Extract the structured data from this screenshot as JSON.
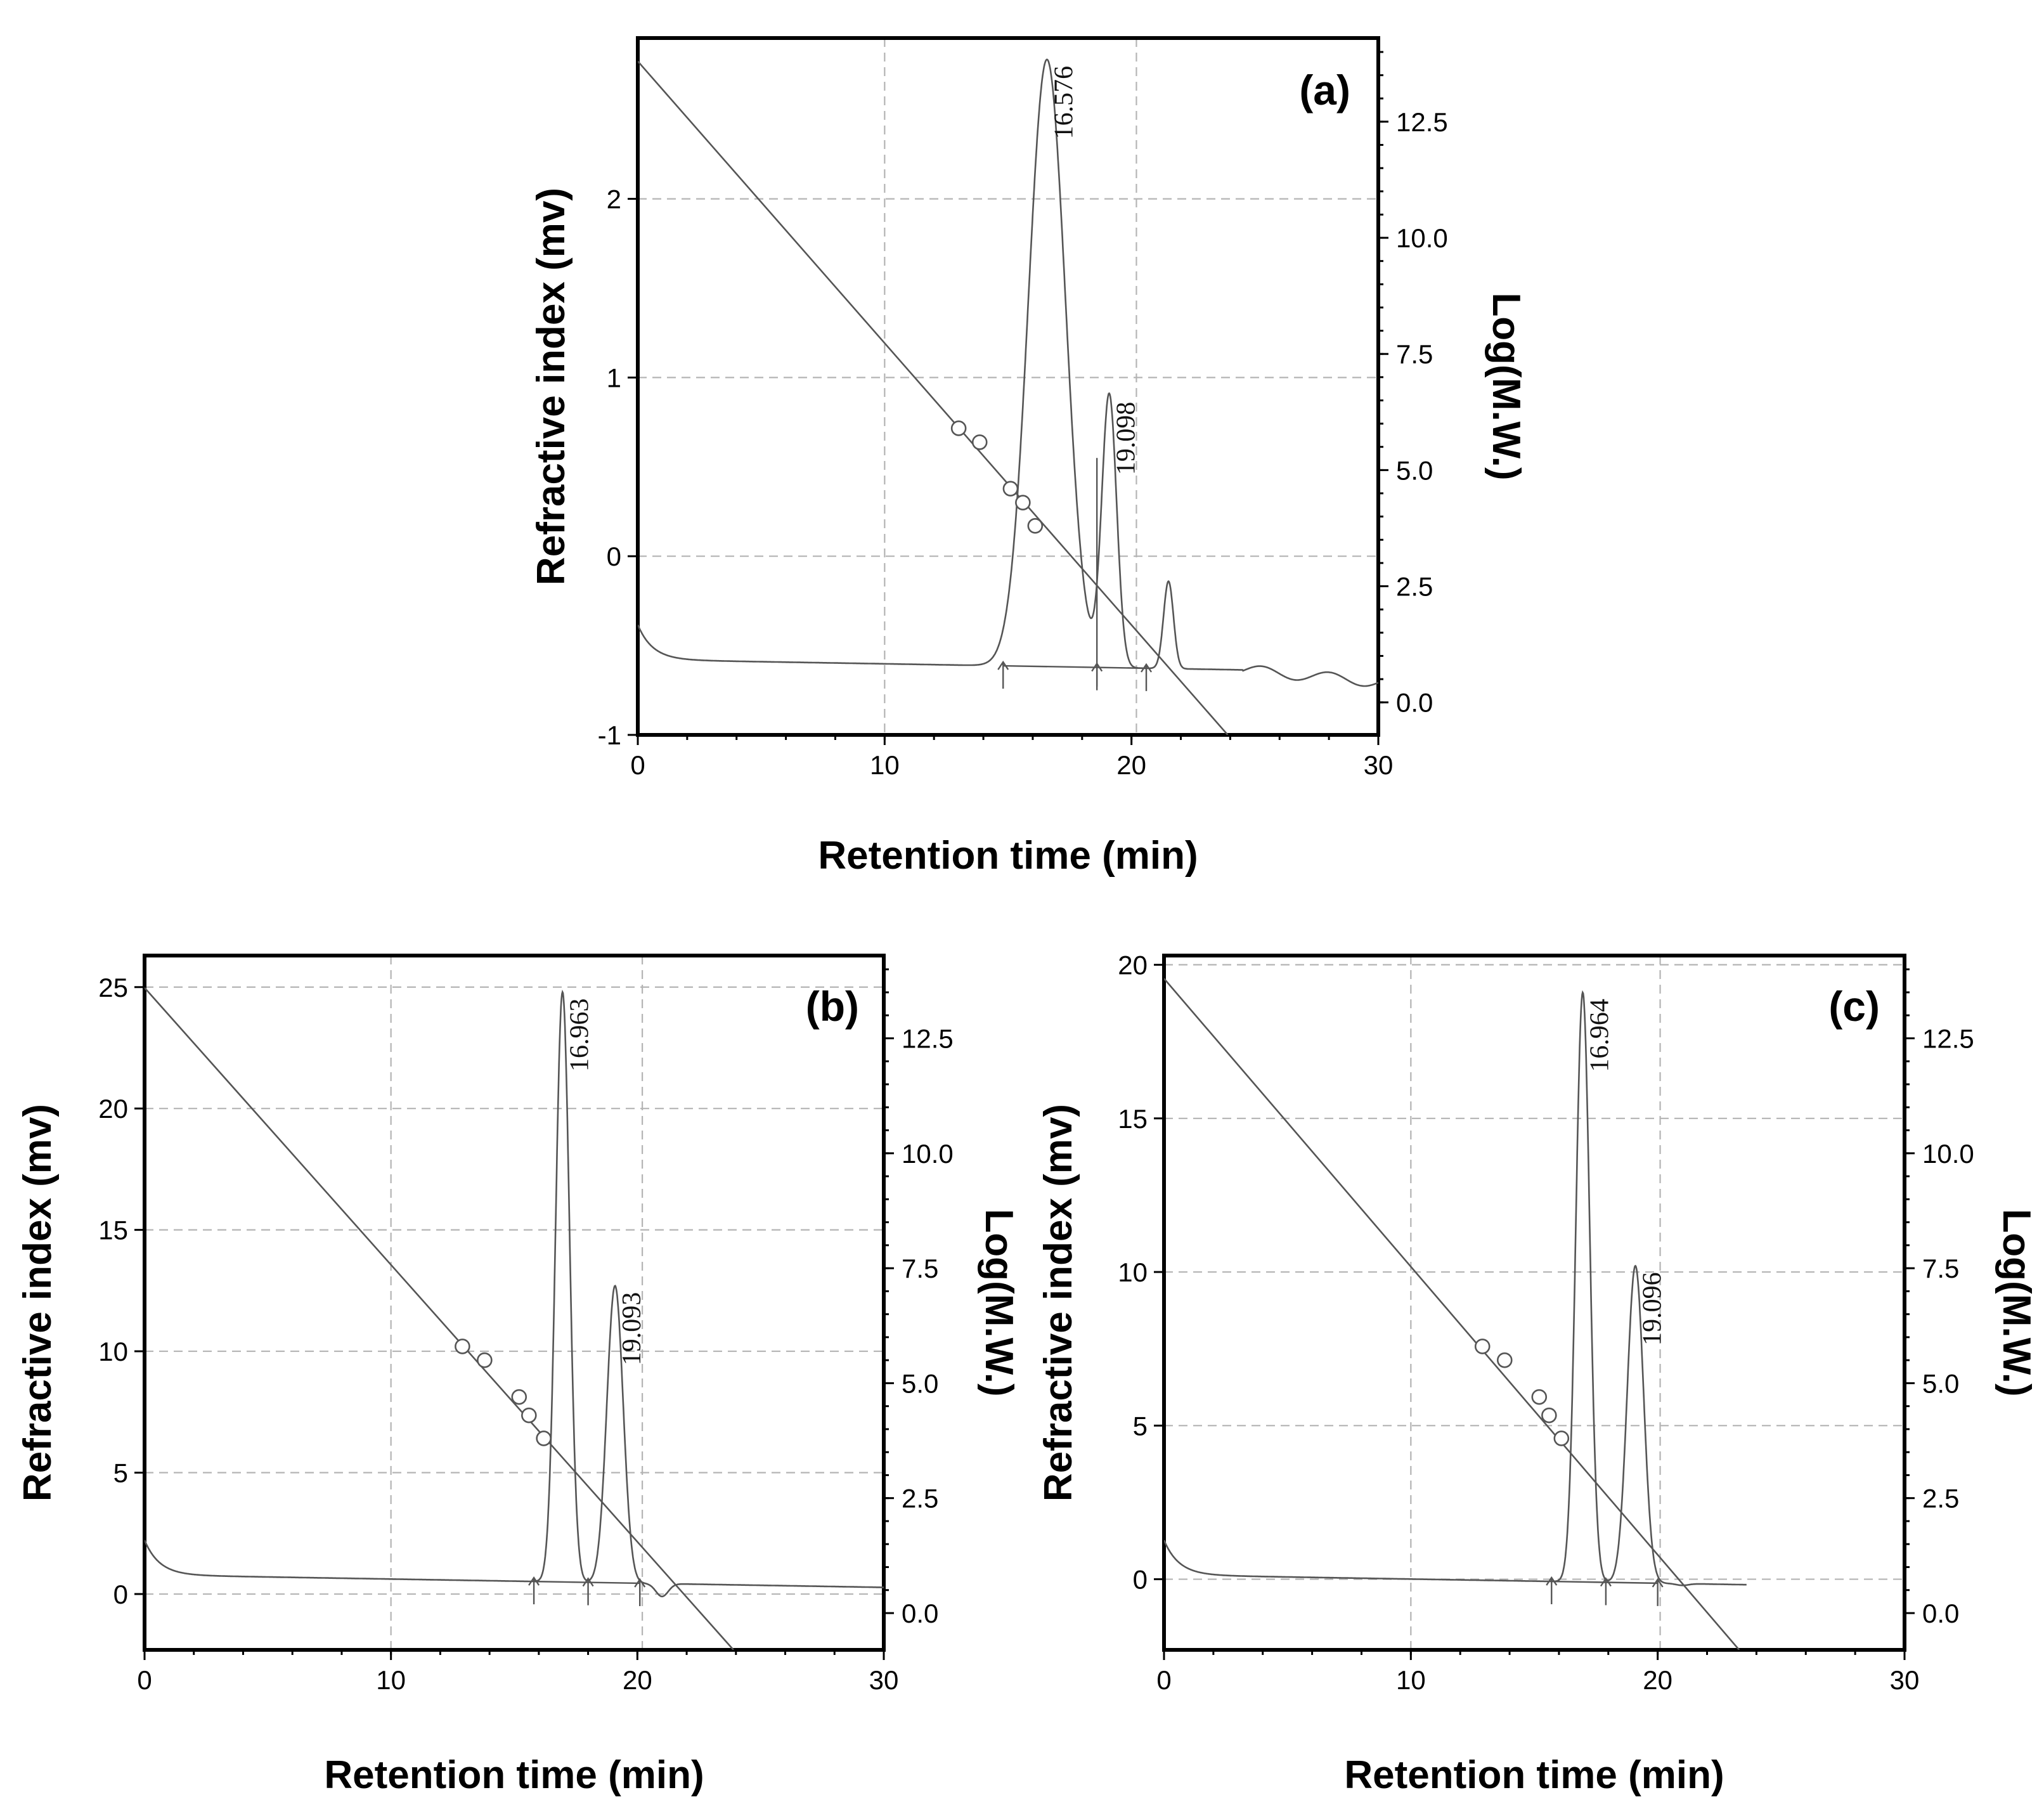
{
  "chart_data": [
    {
      "panel": "(a)",
      "type": "line",
      "xlabel": "Retention time (min)",
      "ylabel": "Refractive index (mv)",
      "y2label": "Log(M.W.)",
      "xlim": [
        0,
        30
      ],
      "ylim": [
        -1,
        2.9
      ],
      "y2lim": [
        -0.7,
        14.3
      ],
      "xticks": [
        "0",
        "10",
        "20",
        "30"
      ],
      "yticks": [
        "-1",
        "0",
        "1",
        "2"
      ],
      "y2ticks": [
        "0.0",
        "2.5",
        "5.0",
        "7.5",
        "10.0",
        "12.5"
      ],
      "vlines": [
        10,
        20.2
      ],
      "peaks": [
        {
          "label": "16.576",
          "x": 16.576,
          "y": 2.78,
          "sigma": 0.75
        },
        {
          "label": "19.098",
          "x": 19.098,
          "y": 0.9,
          "sigma": 0.3
        },
        {
          "x": 21.5,
          "y": -0.14,
          "sigma": 0.2
        }
      ],
      "baseline_segments": [
        [
          14.8,
          18.6
        ],
        [
          18.6,
          20.6
        ]
      ],
      "markers": [
        14.8,
        18.6,
        20.6
      ],
      "calibration_line": {
        "x": [
          0,
          23.9
        ],
        "log_mw": [
          13.8,
          -0.7
        ]
      },
      "calibration_points": [
        {
          "x": 13.0,
          "log_mw": 5.9
        },
        {
          "x": 13.85,
          "log_mw": 5.6
        },
        {
          "x": 15.1,
          "log_mw": 4.6
        },
        {
          "x": 15.6,
          "log_mw": 4.3
        },
        {
          "x": 16.1,
          "log_mw": 3.8
        }
      ]
    },
    {
      "panel": "(b)",
      "type": "line",
      "xlabel": "Retention time (min)",
      "ylabel": "Refractive index (mv)",
      "y2label": "Log(M.W.)",
      "xlim": [
        0,
        30
      ],
      "ylim": [
        -2.3,
        26.3
      ],
      "y2lim": [
        -0.8,
        14.3
      ],
      "xticks": [
        "0",
        "10",
        "20",
        "30"
      ],
      "yticks": [
        "0",
        "5",
        "10",
        "15",
        "20",
        "25"
      ],
      "y2ticks": [
        "0.0",
        "2.5",
        "5.0",
        "7.5",
        "10.0",
        "12.5"
      ],
      "vlines": [
        10,
        20.2
      ],
      "peaks": [
        {
          "label": "16.963",
          "x": 16.963,
          "y": 24.8,
          "sigma": 0.28
        },
        {
          "label": "19.093",
          "x": 19.093,
          "y": 12.7,
          "sigma": 0.33
        },
        {
          "x": 21.0,
          "y": -0.1,
          "sigma": 0.25
        }
      ],
      "baseline_segments": [
        [
          15.8,
          18.0
        ],
        [
          18.0,
          20.1
        ]
      ],
      "markers": [
        15.8,
        18.0,
        20.1
      ],
      "calibration_line": {
        "x": [
          0,
          23.9
        ],
        "log_mw": [
          13.6,
          -0.8
        ]
      },
      "calibration_points": [
        {
          "x": 12.9,
          "log_mw": 5.8
        },
        {
          "x": 13.8,
          "log_mw": 5.5
        },
        {
          "x": 15.2,
          "log_mw": 4.7
        },
        {
          "x": 15.6,
          "log_mw": 4.3
        },
        {
          "x": 16.2,
          "log_mw": 3.8
        }
      ]
    },
    {
      "panel": "(c)",
      "type": "line",
      "xlabel": "Retention time (min)",
      "ylabel": "Refractive index (mv)",
      "y2label": "Log(M.W.)",
      "xlim": [
        0,
        30
      ],
      "ylim": [
        -2.3,
        20.3
      ],
      "y2lim": [
        -0.8,
        14.3
      ],
      "xticks": [
        "0",
        "10",
        "20",
        "30"
      ],
      "yticks": [
        "0",
        "5",
        "10",
        "15",
        "20"
      ],
      "y2ticks": [
        "0.0",
        "2.5",
        "5.0",
        "7.5",
        "10.0",
        "12.5"
      ],
      "vlines": [
        10,
        20.1
      ],
      "peaks": [
        {
          "label": "16.964",
          "x": 16.964,
          "y": 19.1,
          "sigma": 0.28
        },
        {
          "label": "19.096",
          "x": 19.096,
          "y": 10.2,
          "sigma": 0.33
        },
        {
          "x": 21.0,
          "y": -0.2,
          "sigma": 0.25
        }
      ],
      "baseline_segments": [
        [
          15.7,
          17.9
        ],
        [
          17.9,
          20.0
        ]
      ],
      "markers": [
        15.7,
        17.9,
        20.0
      ],
      "trace_end": 23.6,
      "calibration_line": {
        "x": [
          0,
          23.3
        ],
        "log_mw": [
          13.8,
          -0.8
        ]
      },
      "calibration_points": [
        {
          "x": 12.9,
          "log_mw": 5.8
        },
        {
          "x": 13.8,
          "log_mw": 5.5
        },
        {
          "x": 15.2,
          "log_mw": 4.7
        },
        {
          "x": 15.6,
          "log_mw": 4.3
        },
        {
          "x": 16.1,
          "log_mw": 3.8
        }
      ]
    }
  ]
}
